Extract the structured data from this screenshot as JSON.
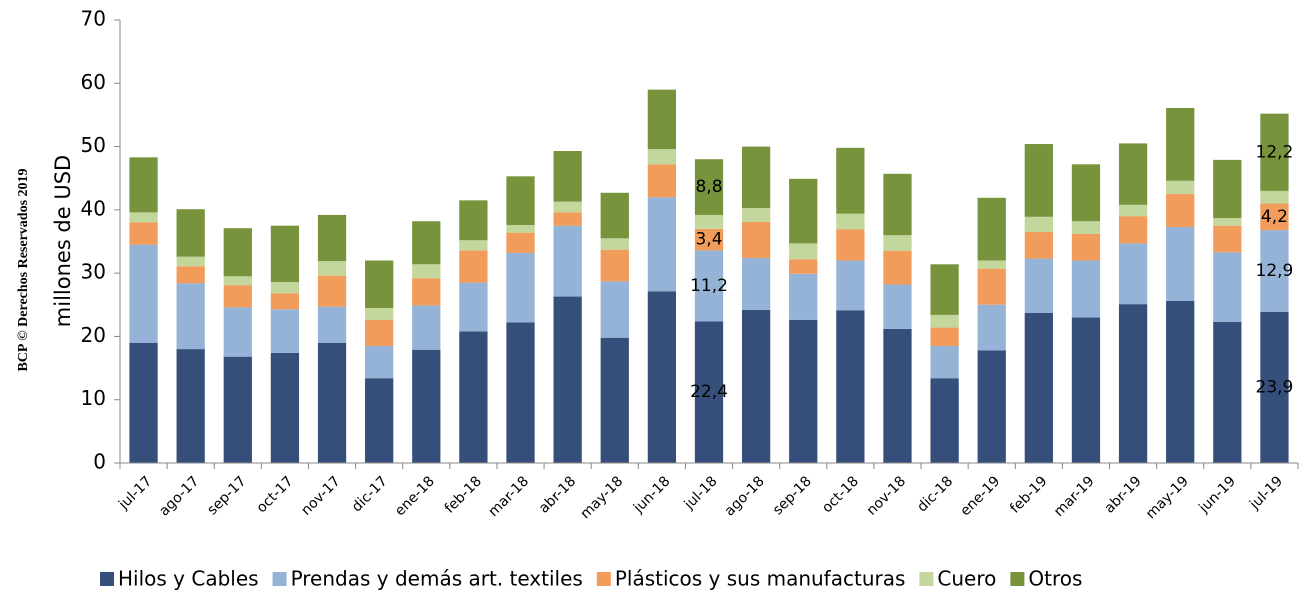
{
  "chart_data": {
    "type": "stacked_bar",
    "ylabel": "millones de  USD",
    "watermark": "BCP © Derechos Reservados 2019",
    "categories": [
      "jul-17",
      "ago-17",
      "sep-17",
      "oct-17",
      "nov-17",
      "dic-17",
      "ene-18",
      "feb-18",
      "mar-18",
      "abr-18",
      "may-18",
      "jun-18",
      "jul-18",
      "ago-18",
      "sep-18",
      "oct-18",
      "nov-18",
      "dic-18",
      "ene-19",
      "feb-19",
      "mar-19",
      "abr-19",
      "may-19",
      "jun-19",
      "jul-19"
    ],
    "series": [
      {
        "name": "Hilos y Cables",
        "color": "#364f7a",
        "values": [
          19,
          18,
          16.8,
          17.4,
          19,
          13.4,
          17.9,
          20.8,
          22.2,
          26.3,
          19.8,
          27.1,
          22.4,
          24.2,
          22.6,
          24.1,
          21.2,
          13.4,
          17.8,
          23.7,
          23,
          25.1,
          25.6,
          22.3,
          23.9
        ],
        "value_labels": [
          null,
          null,
          null,
          null,
          null,
          null,
          null,
          null,
          null,
          null,
          null,
          null,
          "22,4",
          null,
          null,
          null,
          null,
          null,
          null,
          null,
          null,
          null,
          null,
          null,
          "23,9"
        ]
      },
      {
        "name": "Prendas y demás art. textiles",
        "color": "#95b3d7",
        "values": [
          15.5,
          10.4,
          7.8,
          6.9,
          5.7,
          5.1,
          7.0,
          7.7,
          11.0,
          11.2,
          8.9,
          14.9,
          11.2,
          8.2,
          7.3,
          7.9,
          7.0,
          5.1,
          7.2,
          8.6,
          9.0,
          9.6,
          11.7,
          11.0,
          12.9
        ],
        "value_labels": [
          null,
          null,
          null,
          null,
          null,
          null,
          null,
          null,
          null,
          null,
          null,
          null,
          "11,2",
          null,
          null,
          null,
          null,
          null,
          null,
          null,
          null,
          null,
          null,
          null,
          "12,9"
        ]
      },
      {
        "name": "Plásticos y sus manufacturas",
        "color": "#f29c5c",
        "values": [
          3.5,
          2.7,
          3.5,
          2.5,
          4.9,
          4.1,
          4.3,
          5.1,
          3.2,
          2.1,
          5.0,
          5.2,
          3.4,
          5.7,
          2.3,
          4.9,
          5.3,
          2.9,
          5.7,
          4.2,
          4.2,
          4.3,
          5.2,
          4.2,
          4.2
        ],
        "value_labels": [
          null,
          null,
          null,
          null,
          null,
          null,
          null,
          null,
          null,
          null,
          null,
          null,
          "3,4",
          null,
          null,
          null,
          null,
          null,
          null,
          null,
          null,
          null,
          null,
          null,
          "4,2"
        ]
      },
      {
        "name": "Cuero",
        "color": "#c3d69b",
        "values": [
          1.6,
          1.5,
          1.4,
          1.8,
          2.3,
          1.9,
          2.2,
          1.6,
          1.2,
          1.7,
          1.8,
          2.4,
          2.2,
          2.2,
          2.5,
          2.5,
          2.5,
          2.0,
          1.3,
          2.4,
          2.0,
          1.8,
          2.1,
          1.2,
          2.0
        ]
      },
      {
        "name": "Otros",
        "color": "#77933c",
        "values": [
          8.7,
          7.5,
          7.6,
          8.9,
          7.3,
          7.5,
          6.8,
          6.3,
          7.7,
          8.0,
          7.2,
          9.4,
          8.8,
          9.7,
          10.2,
          10.4,
          9.7,
          8.0,
          9.9,
          11.5,
          9.0,
          9.7,
          11.5,
          9.2,
          12.2
        ],
        "value_labels": [
          null,
          null,
          null,
          null,
          null,
          null,
          null,
          null,
          null,
          null,
          null,
          null,
          "8,8",
          null,
          null,
          null,
          null,
          null,
          null,
          null,
          null,
          null,
          null,
          null,
          "12,2"
        ]
      }
    ],
    "ylim": [
      0,
      70
    ],
    "yticks": [
      0,
      10,
      20,
      30,
      40,
      50,
      60,
      70
    ],
    "grid": false,
    "legend": "bottom"
  }
}
